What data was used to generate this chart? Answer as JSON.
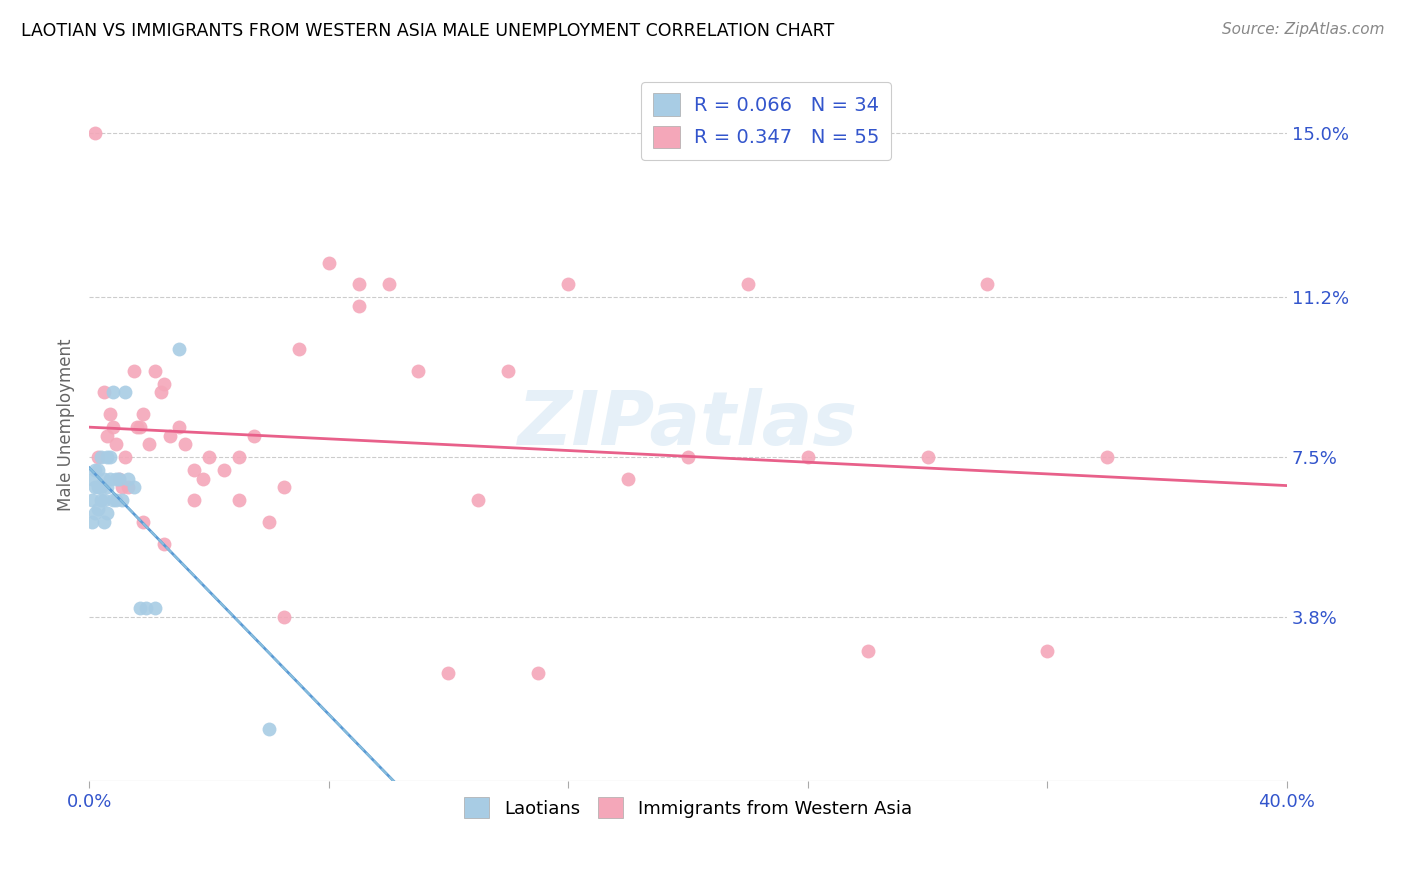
{
  "title": "LAOTIAN VS IMMIGRANTS FROM WESTERN ASIA MALE UNEMPLOYMENT CORRELATION CHART",
  "source": "Source: ZipAtlas.com",
  "ylabel": "Male Unemployment",
  "xlim": [
    0.0,
    0.4
  ],
  "ylim": [
    0.0,
    0.165
  ],
  "yticks": [
    0.038,
    0.075,
    0.112,
    0.15
  ],
  "ytick_labels": [
    "3.8%",
    "7.5%",
    "11.2%",
    "15.0%"
  ],
  "xticks": [
    0.0,
    0.08,
    0.16,
    0.24,
    0.32,
    0.4
  ],
  "xtick_labels": [
    "0.0%",
    "",
    "",
    "",
    "",
    "40.0%"
  ],
  "color_blue": "#a8cce4",
  "color_pink": "#f4a7b9",
  "line_blue_solid": "#5b9bd5",
  "line_blue_dash": "#92c5de",
  "line_pink": "#e8608a",
  "watermark": "ZIPatlas",
  "laotian_x": [
    0.001,
    0.001,
    0.001,
    0.002,
    0.002,
    0.002,
    0.003,
    0.003,
    0.003,
    0.004,
    0.004,
    0.004,
    0.005,
    0.005,
    0.005,
    0.006,
    0.006,
    0.006,
    0.007,
    0.007,
    0.008,
    0.008,
    0.009,
    0.009,
    0.01,
    0.011,
    0.012,
    0.013,
    0.015,
    0.017,
    0.019,
    0.022,
    0.03,
    0.06
  ],
  "laotian_y": [
    0.06,
    0.065,
    0.07,
    0.062,
    0.068,
    0.072,
    0.063,
    0.068,
    0.072,
    0.065,
    0.068,
    0.075,
    0.06,
    0.065,
    0.07,
    0.062,
    0.068,
    0.075,
    0.07,
    0.075,
    0.09,
    0.065,
    0.07,
    0.065,
    0.07,
    0.065,
    0.09,
    0.07,
    0.068,
    0.04,
    0.04,
    0.04,
    0.1,
    0.012
  ],
  "western_asia_x": [
    0.002,
    0.003,
    0.005,
    0.006,
    0.007,
    0.008,
    0.009,
    0.01,
    0.011,
    0.012,
    0.013,
    0.015,
    0.016,
    0.017,
    0.018,
    0.02,
    0.022,
    0.024,
    0.025,
    0.027,
    0.03,
    0.032,
    0.035,
    0.038,
    0.04,
    0.045,
    0.05,
    0.055,
    0.06,
    0.065,
    0.07,
    0.08,
    0.09,
    0.1,
    0.11,
    0.12,
    0.13,
    0.14,
    0.16,
    0.18,
    0.2,
    0.22,
    0.24,
    0.26,
    0.28,
    0.3,
    0.32,
    0.34,
    0.018,
    0.025,
    0.035,
    0.05,
    0.065,
    0.09,
    0.15
  ],
  "western_asia_y": [
    0.15,
    0.075,
    0.09,
    0.08,
    0.085,
    0.082,
    0.078,
    0.07,
    0.068,
    0.075,
    0.068,
    0.095,
    0.082,
    0.082,
    0.085,
    0.078,
    0.095,
    0.09,
    0.092,
    0.08,
    0.082,
    0.078,
    0.072,
    0.07,
    0.075,
    0.072,
    0.075,
    0.08,
    0.06,
    0.038,
    0.1,
    0.12,
    0.115,
    0.115,
    0.095,
    0.025,
    0.065,
    0.095,
    0.115,
    0.07,
    0.075,
    0.115,
    0.075,
    0.03,
    0.075,
    0.115,
    0.03,
    0.075,
    0.06,
    0.055,
    0.065,
    0.065,
    0.068,
    0.11,
    0.025
  ]
}
